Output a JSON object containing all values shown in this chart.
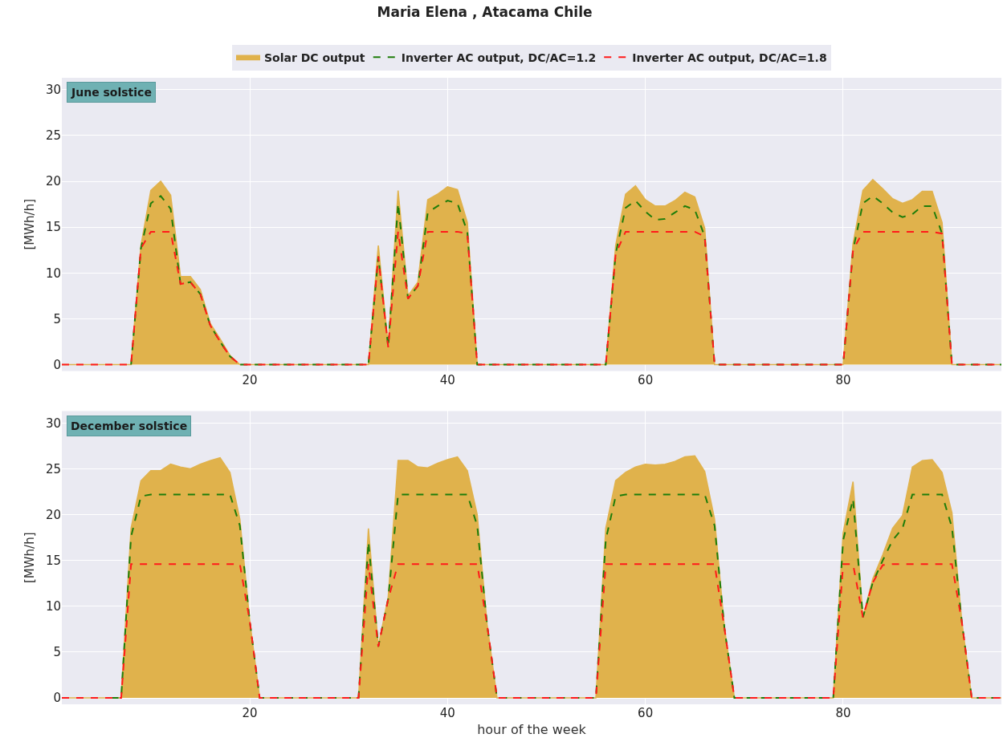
{
  "chart_data": [
    {
      "type": "area",
      "title": "Maria Elena , Atacama Chile",
      "ylabel": "[MWh/h]",
      "annotations": [
        "June solstice"
      ],
      "x": [
        1,
        2,
        3,
        4,
        5,
        6,
        7,
        8,
        9,
        10,
        11,
        12,
        13,
        14,
        15,
        16,
        17,
        18,
        19,
        20,
        21,
        22,
        23,
        24,
        25,
        26,
        27,
        28,
        29,
        30,
        31,
        32,
        33,
        34,
        35,
        36,
        37,
        38,
        39,
        40,
        41,
        42,
        43,
        44,
        45,
        46,
        47,
        48,
        49,
        50,
        51,
        52,
        53,
        54,
        55,
        56,
        57,
        58,
        59,
        60,
        61,
        62,
        63,
        64,
        65,
        66,
        67,
        68,
        69,
        70,
        71,
        72,
        73,
        74,
        75,
        76,
        77,
        78,
        79,
        80,
        81,
        82,
        83,
        84,
        85,
        86,
        87,
        88,
        89,
        90,
        91,
        92,
        93,
        94,
        95,
        96
      ],
      "series": [
        {
          "name": "Solar DC output",
          "color": "#e0b24c",
          "line_style": "solid",
          "values": [
            0,
            0,
            0,
            0,
            0,
            0,
            0,
            0,
            13,
            19,
            20,
            18.5,
            9.6,
            9.6,
            8.2,
            4.5,
            2.8,
            1.0,
            0,
            0,
            0,
            0,
            0,
            0,
            0,
            0,
            0,
            0,
            0,
            0,
            0,
            0,
            13,
            2,
            19,
            7.5,
            9,
            18,
            18.6,
            19.4,
            19.1,
            15.5,
            0,
            0,
            0,
            0,
            0,
            0,
            0,
            0,
            0,
            0,
            0,
            0,
            0,
            0,
            13,
            18.6,
            19.5,
            18,
            17.3,
            17.3,
            17.9,
            18.8,
            18.3,
            14.9,
            0,
            0,
            0,
            0,
            0,
            0,
            0,
            0,
            0,
            0,
            0,
            0,
            0,
            0,
            13.2,
            19,
            20.2,
            19.2,
            18.1,
            17.6,
            18,
            18.9,
            18.9,
            15.5,
            0,
            0,
            0,
            0,
            0,
            0
          ]
        },
        {
          "name": "Inverter AC output, DC/AC=1.2",
          "type": "line",
          "color": "#1e7d0a",
          "line_style": "dashed",
          "values": [
            null,
            null,
            null,
            null,
            null,
            null,
            null,
            0,
            12.7,
            17.6,
            18.4,
            17,
            8.8,
            9.0,
            7.7,
            4.3,
            2.5,
            0.9,
            0,
            0,
            0,
            0,
            0,
            0,
            0,
            0,
            0,
            0,
            0,
            0,
            0,
            0,
            11.8,
            1.9,
            17.6,
            7.2,
            8.6,
            16.6,
            17.3,
            17.9,
            17.6,
            14.5,
            0,
            0,
            0,
            0,
            0,
            0,
            0,
            0,
            0,
            0,
            0,
            0,
            0,
            0,
            12.1,
            17.1,
            17.9,
            16.7,
            15.8,
            15.9,
            16.6,
            17.3,
            16.9,
            14,
            0,
            0,
            0,
            0,
            0,
            0,
            0,
            0,
            0,
            0,
            0,
            0,
            0,
            0,
            12.5,
            17.6,
            18.4,
            17.6,
            16.6,
            16.1,
            16.4,
            17.3,
            17.3,
            14.3,
            0,
            0,
            0,
            0,
            0,
            0
          ]
        },
        {
          "name": "Inverter AC output, DC/AC=1.8",
          "type": "line",
          "color": "#ff1a1a",
          "line_style": "dashed",
          "values": [
            0,
            0,
            0,
            0,
            0,
            0,
            0,
            0,
            12.7,
            14.5,
            14.5,
            14.5,
            8.8,
            9.0,
            7.7,
            4.3,
            2.5,
            0.9,
            0,
            0,
            0,
            0,
            0,
            0,
            0,
            0,
            0,
            0,
            0,
            0,
            0,
            0,
            11.8,
            1.9,
            14.5,
            7.2,
            8.6,
            14.5,
            14.5,
            14.5,
            14.5,
            14.3,
            0,
            0,
            0,
            0,
            0,
            0,
            0,
            0,
            0,
            0,
            0,
            0,
            0,
            0,
            12.1,
            14.5,
            14.5,
            14.5,
            14.5,
            14.5,
            14.5,
            14.5,
            14.5,
            14,
            0,
            0,
            0,
            0,
            0,
            0,
            0,
            0,
            0,
            0,
            0,
            0,
            0,
            0,
            12.5,
            14.5,
            14.5,
            14.5,
            14.5,
            14.5,
            14.5,
            14.5,
            14.5,
            14.3,
            0,
            0,
            0,
            0,
            0,
            0
          ]
        }
      ],
      "xlim": [
        1,
        96
      ],
      "xticks": [
        20,
        40,
        60,
        80
      ],
      "ylim": [
        -0.7,
        31.3
      ],
      "yticks": [
        0,
        5,
        10,
        15,
        20,
        25,
        30
      ],
      "grid": true,
      "legend": "top"
    },
    {
      "type": "area",
      "xlabel": "hour of the week",
      "ylabel": "[MWh/h]",
      "annotations": [
        "December solstice"
      ],
      "x": [
        1,
        2,
        3,
        4,
        5,
        6,
        7,
        8,
        9,
        10,
        11,
        12,
        13,
        14,
        15,
        16,
        17,
        18,
        19,
        20,
        21,
        22,
        23,
        24,
        25,
        26,
        27,
        28,
        29,
        30,
        31,
        32,
        33,
        34,
        35,
        36,
        37,
        38,
        39,
        40,
        41,
        42,
        43,
        44,
        45,
        46,
        47,
        48,
        49,
        50,
        51,
        52,
        53,
        54,
        55,
        56,
        57,
        58,
        59,
        60,
        61,
        62,
        63,
        64,
        65,
        66,
        67,
        68,
        69,
        70,
        71,
        72,
        73,
        74,
        75,
        76,
        77,
        78,
        79,
        80,
        81,
        82,
        83,
        84,
        85,
        86,
        87,
        88,
        89,
        90,
        91,
        92,
        93,
        94,
        95,
        96
      ],
      "series": [
        {
          "color": "#e0b24c",
          "line_style": "solid",
          "values": [
            0,
            0,
            0,
            0,
            0,
            0,
            0,
            18.5,
            23.7,
            24.8,
            24.8,
            25.5,
            25.2,
            25,
            25.5,
            25.9,
            26.2,
            24.6,
            19.5,
            8.4,
            0,
            0,
            0,
            0,
            0,
            0,
            0,
            0,
            0,
            0,
            0,
            18.5,
            5.6,
            11,
            25.9,
            25.9,
            25.2,
            25.1,
            25.6,
            26,
            26.3,
            24.8,
            20,
            8,
            0,
            0,
            0,
            0,
            0,
            0,
            0,
            0,
            0,
            0,
            0,
            18.5,
            23.7,
            24.6,
            25.2,
            25.5,
            25.4,
            25.5,
            25.8,
            26.3,
            26.4,
            24.7,
            19.5,
            7.6,
            0,
            0,
            0,
            0,
            0,
            0,
            0,
            0,
            0,
            0,
            0,
            18,
            23.6,
            8.8,
            13,
            15.6,
            18.5,
            19.9,
            25.2,
            25.9,
            26,
            24.6,
            20.2,
            8.3,
            0,
            0,
            0,
            0
          ]
        },
        {
          "type": "line",
          "color": "#1e7d0a",
          "line_style": "dashed",
          "values": [
            null,
            null,
            null,
            null,
            null,
            0,
            0,
            17.6,
            22,
            22.2,
            22.2,
            22.2,
            22.2,
            22.2,
            22.2,
            22.2,
            22.2,
            22.2,
            18.8,
            8.4,
            0,
            0,
            0,
            0,
            0,
            0,
            0,
            0,
            0,
            0,
            0,
            17,
            5.6,
            10.8,
            22.2,
            22.2,
            22.2,
            22.2,
            22.2,
            22.2,
            22.2,
            22.2,
            18.8,
            8,
            0,
            0,
            0,
            0,
            0,
            0,
            0,
            0,
            0,
            0,
            0,
            17.3,
            22,
            22.2,
            22.2,
            22.2,
            22.2,
            22.2,
            22.2,
            22.2,
            22.2,
            22.2,
            18.8,
            7.6,
            0,
            0,
            0,
            0,
            0,
            0,
            0,
            0,
            0,
            0,
            0,
            17.2,
            21.7,
            8.8,
            12.6,
            15,
            17.2,
            18.5,
            22.2,
            22.2,
            22.2,
            22.2,
            18.6,
            8.3,
            0,
            0,
            0,
            0
          ]
        },
        {
          "type": "line",
          "color": "#ff1a1a",
          "line_style": "dashed",
          "values": [
            0,
            0,
            0,
            0,
            0,
            0,
            0,
            14.6,
            14.6,
            14.6,
            14.6,
            14.6,
            14.6,
            14.6,
            14.6,
            14.6,
            14.6,
            14.6,
            14.6,
            8.4,
            0,
            0,
            0,
            0,
            0,
            0,
            0,
            0,
            0,
            0,
            0,
            14.6,
            5.6,
            10.8,
            14.6,
            14.6,
            14.6,
            14.6,
            14.6,
            14.6,
            14.6,
            14.6,
            14.6,
            8,
            0,
            0,
            0,
            0,
            0,
            0,
            0,
            0,
            0,
            0,
            0,
            14.6,
            14.6,
            14.6,
            14.6,
            14.6,
            14.6,
            14.6,
            14.6,
            14.6,
            14.6,
            14.6,
            14.6,
            7.6,
            0,
            0,
            0,
            0,
            0,
            0,
            0,
            0,
            0,
            0,
            0,
            14.6,
            14.6,
            8.8,
            12.6,
            14.5,
            14.6,
            14.6,
            14.6,
            14.6,
            14.6,
            14.6,
            14.6,
            8.3,
            0,
            0,
            0,
            0
          ]
        }
      ],
      "xlim": [
        1,
        96
      ],
      "xticks": [
        20,
        40,
        60,
        80
      ],
      "ylim": [
        -0.7,
        31.3
      ],
      "yticks": [
        0,
        5,
        10,
        15,
        20,
        25,
        30
      ],
      "grid": true
    }
  ]
}
